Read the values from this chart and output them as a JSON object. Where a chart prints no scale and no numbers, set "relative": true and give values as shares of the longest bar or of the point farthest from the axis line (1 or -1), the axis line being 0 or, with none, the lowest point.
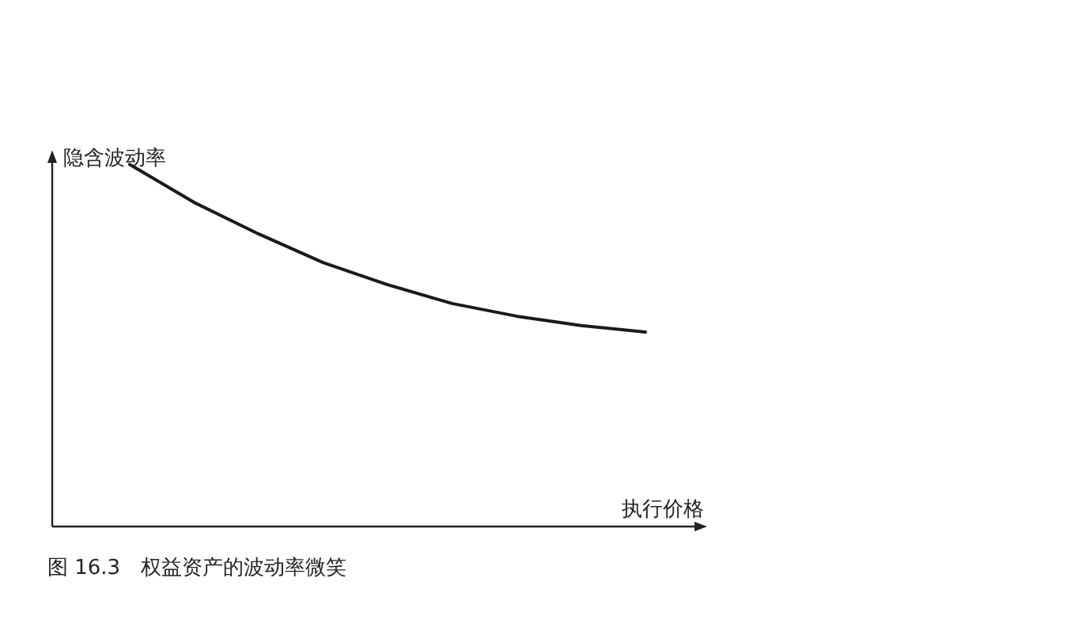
{
  "chart_data": {
    "type": "line",
    "relative": true,
    "ylabel": "隐含波动率",
    "xlabel": "执行价格",
    "categories": [
      null,
      null,
      null,
      null,
      null,
      null,
      null,
      null,
      null
    ],
    "series": [
      {
        "color": "#1a1a1a",
        "values": [
          1,
          0.895,
          0.808,
          0.729,
          0.668,
          0.616,
          0.581,
          0.555,
          0.537
        ]
      }
    ],
    "annotations": [
      "图 16.3　权益资产的波动率微笑"
    ]
  }
}
